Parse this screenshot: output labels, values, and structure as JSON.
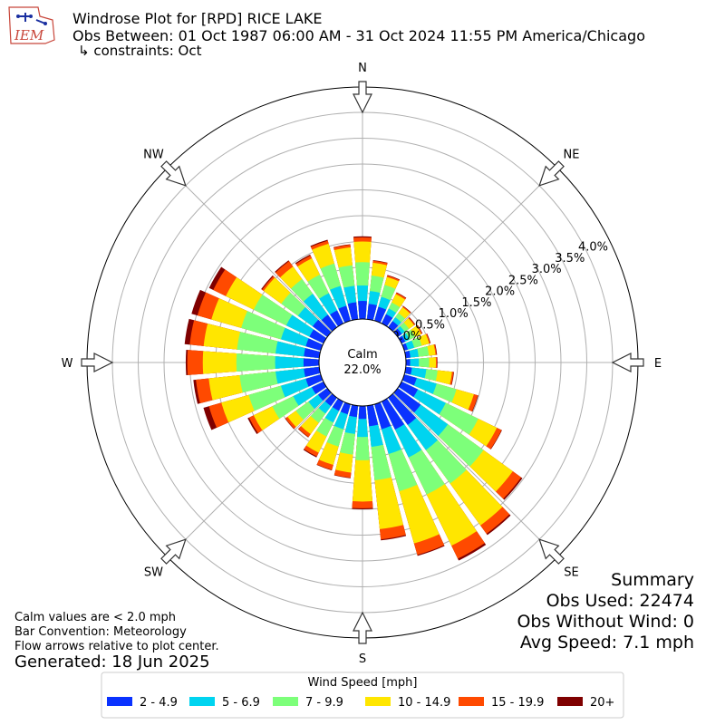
{
  "header": {
    "logo_text": "IEM",
    "title": "Windrose Plot for [RPD] RICE LAKE",
    "obs_between": "Obs Between: 01 Oct 1987 06:00 AM - 31 Oct 2024 11:55 PM America/Chicago",
    "constraints": "↳ constraints: Oct"
  },
  "compass": [
    "N",
    "NE",
    "E",
    "SE",
    "S",
    "SW",
    "W",
    "NW"
  ],
  "center": {
    "label": "Calm",
    "value": "22.0%"
  },
  "radial_ticks": [
    "0.0%",
    "0.5%",
    "1.0%",
    "1.5%",
    "2.0%",
    "2.5%",
    "3.0%",
    "3.5%",
    "4.0%"
  ],
  "summary": {
    "heading": "Summary",
    "obs_used": "Obs Used: 22474",
    "obs_without_wind": "Obs Without Wind: 0",
    "avg_speed": "Avg Speed: 7.1 mph"
  },
  "notes": {
    "calm": "Calm values are < 2.0 mph",
    "bar_convention": "Bar Convention: Meteorology",
    "flow": "Flow arrows relative to plot center.",
    "generated": "Generated: 18 Jun 2025"
  },
  "legend": {
    "title": "Wind Speed [mph]",
    "items": [
      {
        "label": "2 - 4.9",
        "color": "#0a32ff"
      },
      {
        "label": "5 - 6.9",
        "color": "#00d4f0"
      },
      {
        "label": "7 - 9.9",
        "color": "#7dff7a"
      },
      {
        "label": "10 - 14.9",
        "color": "#ffe600"
      },
      {
        "label": "15 - 19.9",
        "color": "#ff4a00"
      },
      {
        "label": "20+",
        "color": "#7f0000"
      }
    ]
  },
  "chart_data": {
    "type": "windrose",
    "title": "Windrose Plot for [RPD] RICE LAKE",
    "calm_percent": 22.0,
    "rlim": [
      0,
      4.0
    ],
    "radial_ticks": [
      0,
      0.5,
      1.0,
      1.5,
      2.0,
      2.5,
      3.0,
      3.5,
      4.0
    ],
    "grid": true,
    "directions_deg": [
      0,
      10,
      20,
      30,
      40,
      50,
      60,
      70,
      80,
      90,
      100,
      110,
      120,
      130,
      140,
      150,
      160,
      170,
      180,
      190,
      200,
      210,
      220,
      230,
      240,
      250,
      260,
      270,
      280,
      290,
      300,
      310,
      320,
      330,
      340,
      350
    ],
    "bins": [
      "2 - 4.9",
      "5 - 6.9",
      "7 - 9.9",
      "10 - 14.9",
      "15 - 19.9",
      "20+"
    ],
    "cumulative_percent": [
      [
        0.35,
        0.65,
        1.1,
        1.5,
        1.58,
        1.6
      ],
      [
        0.3,
        0.55,
        0.85,
        1.1,
        1.14,
        1.15
      ],
      [
        0.28,
        0.48,
        0.72,
        0.88,
        0.91,
        0.92
      ],
      [
        0.2,
        0.32,
        0.45,
        0.63,
        0.66,
        0.67
      ],
      [
        0.15,
        0.24,
        0.34,
        0.48,
        0.5,
        0.51
      ],
      [
        0.1,
        0.17,
        0.27,
        0.39,
        0.41,
        0.42
      ],
      [
        0.08,
        0.17,
        0.29,
        0.42,
        0.44,
        0.45
      ],
      [
        0.07,
        0.2,
        0.35,
        0.5,
        0.52,
        0.53
      ],
      [
        0.09,
        0.25,
        0.45,
        0.58,
        0.6,
        0.61
      ],
      [
        0.08,
        0.25,
        0.45,
        0.58,
        0.6,
        0.61
      ],
      [
        0.12,
        0.4,
        0.62,
        0.9,
        0.93,
        0.94
      ],
      [
        0.25,
        0.65,
        1.05,
        1.4,
        1.48,
        1.49
      ],
      [
        0.35,
        0.95,
        1.65,
        2.05,
        2.15,
        2.16
      ],
      [
        0.55,
        1.2,
        2.05,
        2.75,
        2.95,
        2.98
      ],
      [
        0.65,
        1.25,
        2.05,
        3.05,
        3.25,
        3.28
      ],
      [
        0.6,
        1.2,
        2.0,
        3.1,
        3.38,
        3.42
      ],
      [
        0.5,
        1.0,
        1.75,
        2.8,
        3.03,
        3.05
      ],
      [
        0.4,
        0.8,
        1.45,
        2.4,
        2.6,
        2.62
      ],
      [
        0.25,
        0.6,
        1.05,
        1.85,
        1.98,
        2.0
      ],
      [
        0.22,
        0.55,
        0.95,
        1.3,
        1.4,
        1.41
      ],
      [
        0.2,
        0.5,
        0.85,
        1.22,
        1.32,
        1.33
      ],
      [
        0.2,
        0.45,
        0.75,
        1.1,
        1.18,
        1.2
      ],
      [
        0.2,
        0.38,
        0.6,
        0.87,
        0.94,
        0.95
      ],
      [
        0.22,
        0.45,
        0.75,
        0.95,
        1.0,
        1.01
      ],
      [
        0.25,
        0.65,
        1.1,
        1.5,
        1.6,
        1.63
      ],
      [
        0.3,
        0.8,
        1.45,
        2.0,
        2.25,
        2.36
      ],
      [
        0.3,
        0.85,
        1.55,
        2.15,
        2.4,
        2.45
      ],
      [
        0.3,
        0.85,
        1.6,
        2.25,
        2.55,
        2.58
      ],
      [
        0.3,
        0.85,
        1.6,
        2.25,
        2.52,
        2.62
      ],
      [
        0.3,
        0.8,
        1.6,
        2.2,
        2.48,
        2.6
      ],
      [
        0.3,
        0.8,
        1.5,
        2.1,
        2.37,
        2.46
      ],
      [
        0.35,
        0.7,
        1.1,
        1.52,
        1.56,
        1.58
      ],
      [
        0.3,
        0.8,
        1.15,
        1.45,
        1.58,
        1.6
      ],
      [
        0.28,
        0.65,
        1.05,
        1.4,
        1.46,
        1.48
      ],
      [
        0.3,
        0.7,
        1.15,
        1.55,
        1.61,
        1.63
      ],
      [
        0.33,
        0.65,
        1.05,
        1.4,
        1.45,
        1.46
      ]
    ]
  }
}
